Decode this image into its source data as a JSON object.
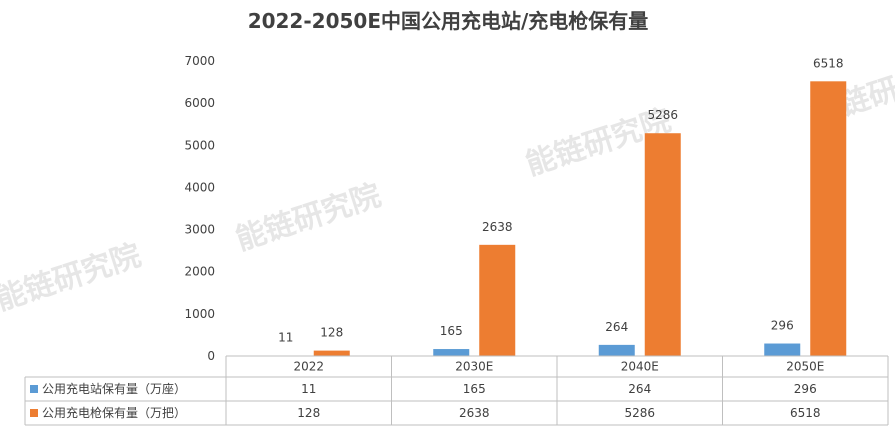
{
  "chart_data": {
    "type": "bar",
    "title": "2022-2050E中国公用充电站/充电枪保有量",
    "categories": [
      "2022",
      "2030E",
      "2040E",
      "2050E"
    ],
    "series": [
      {
        "name": "公用充电站保有量（万座）",
        "values": [
          11,
          165,
          264,
          296
        ],
        "color": "#5B9BD5"
      },
      {
        "name": "公用充电枪保有量（万把）",
        "values": [
          128,
          2638,
          5286,
          6518
        ],
        "color": "#ED7D31"
      }
    ],
    "ylim": [
      0,
      7000
    ],
    "yticks": [
      "0",
      "1000",
      "2000",
      "3000",
      "4000",
      "5000",
      "6000",
      "7000"
    ],
    "grid": false,
    "legend": "data-table",
    "watermark": "能链研究院"
  }
}
